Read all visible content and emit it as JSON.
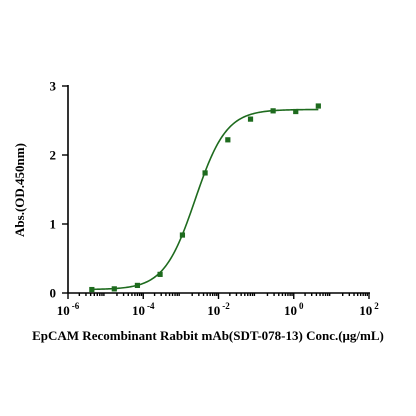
{
  "chart_data": {
    "type": "scatter",
    "xscale": "log",
    "xlim": [
      1e-06,
      100
    ],
    "ylim": [
      0,
      3
    ],
    "xlabel": "EpCAM Recombinant Rabbit mAb(SDT-078-13) Conc.(μg/mL)",
    "ylabel": "Abs.(OD.450nm)",
    "x_tick_labels": [
      {
        "base": "10",
        "exp": "-6"
      },
      {
        "base": "10",
        "exp": "-4"
      },
      {
        "base": "10",
        "exp": "-2"
      },
      {
        "base": "10",
        "exp": "0"
      },
      {
        "base": "10",
        "exp": "2"
      }
    ],
    "x_tick_values": [
      1e-06,
      0.0001,
      0.01,
      1,
      100
    ],
    "y_ticks": [
      0,
      1,
      2,
      3
    ],
    "grid": false,
    "marker_color": "#1e6b1e",
    "curve_color": "#1e6b1e",
    "series": [
      {
        "points": [
          {
            "x": 4.3e-06,
            "y": 0.05
          },
          {
            "x": 1.7e-05,
            "y": 0.06
          },
          {
            "x": 7e-05,
            "y": 0.11
          },
          {
            "x": 0.00028,
            "y": 0.27
          },
          {
            "x": 0.0011,
            "y": 0.84
          },
          {
            "x": 0.0044,
            "y": 1.74
          },
          {
            "x": 0.0177,
            "y": 2.22
          },
          {
            "x": 0.071,
            "y": 2.52
          },
          {
            "x": 0.283,
            "y": 2.64
          },
          {
            "x": 1.13,
            "y": 2.63
          },
          {
            "x": 4.5,
            "y": 2.71
          }
        ],
        "fit": {
          "bottom": 0.05,
          "top": 2.66,
          "ec50": 0.0024,
          "hill": 1.05
        }
      }
    ]
  }
}
